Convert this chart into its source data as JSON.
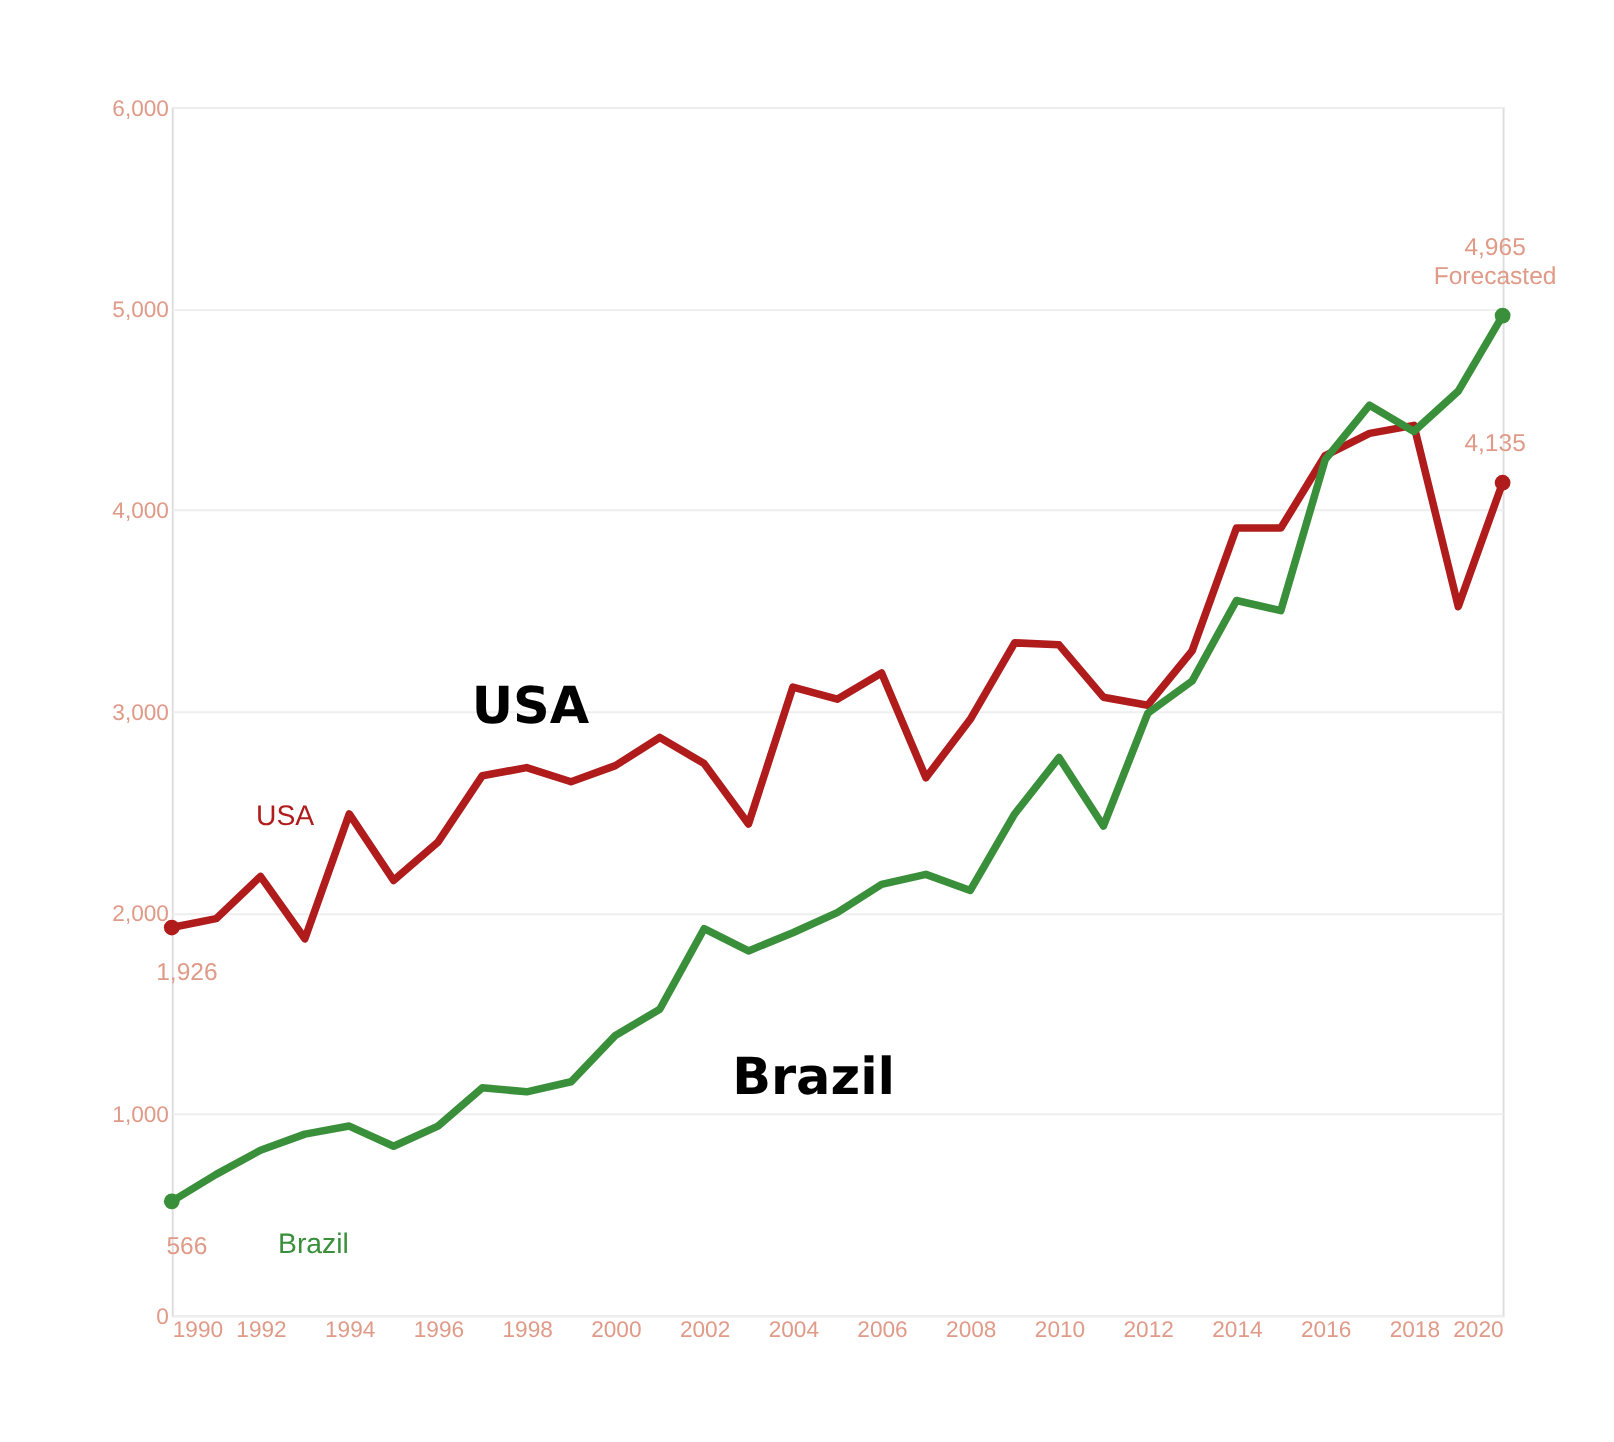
{
  "chart_data": {
    "type": "line",
    "x": [
      1990,
      1991,
      1992,
      1993,
      1994,
      1995,
      1996,
      1997,
      1998,
      1999,
      2000,
      2001,
      2002,
      2003,
      2004,
      2005,
      2006,
      2007,
      2008,
      2009,
      2010,
      2011,
      2012,
      2013,
      2014,
      2015,
      2016,
      2017,
      2018,
      2019,
      2020
    ],
    "series": [
      {
        "name": "USA",
        "color": "#b01c1c",
        "values": [
          1926,
          1970,
          2180,
          1870,
          2490,
          2160,
          2350,
          2680,
          2720,
          2650,
          2730,
          2870,
          2740,
          2440,
          3120,
          3060,
          3190,
          2670,
          2960,
          3340,
          3330,
          3070,
          3030,
          3300,
          3910,
          3910,
          4270,
          4380,
          4420,
          3520,
          4135
        ],
        "value_labels": [
          "1,926",
          null,
          null,
          null,
          null,
          null,
          null,
          null,
          null,
          null,
          null,
          null,
          null,
          null,
          null,
          null,
          null,
          null,
          null,
          null,
          null,
          null,
          null,
          null,
          null,
          null,
          null,
          null,
          null,
          null,
          "4,135"
        ]
      },
      {
        "name": "Brazil",
        "color": "#3a8f3a",
        "values": [
          566,
          700,
          820,
          900,
          940,
          840,
          940,
          1130,
          1110,
          1160,
          1390,
          1520,
          1920,
          1810,
          1900,
          2000,
          2140,
          2190,
          2110,
          2490,
          2770,
          2430,
          2990,
          3150,
          3550,
          3500,
          4250,
          4520,
          4390,
          4590,
          4965
        ],
        "value_labels": [
          "566",
          null,
          null,
          null,
          null,
          null,
          null,
          null,
          null,
          null,
          null,
          null,
          null,
          null,
          null,
          null,
          null,
          null,
          null,
          null,
          null,
          null,
          null,
          null,
          null,
          null,
          null,
          null,
          null,
          null,
          "4,965\nForecasted"
        ]
      }
    ],
    "annotations": [
      "USA",
      "Brazil"
    ],
    "xlim": [
      1990,
      2020
    ],
    "xticks": [
      1990,
      1992,
      1994,
      1996,
      1998,
      2000,
      2002,
      2004,
      2006,
      2008,
      2010,
      2012,
      2014,
      2016,
      2018,
      2020
    ],
    "ylim": [
      0,
      6000
    ],
    "yticks": [
      {
        "value": 0,
        "label": "0"
      },
      {
        "value": 1000,
        "label": "1,000"
      },
      {
        "value": 2000,
        "label": "2,000"
      },
      {
        "value": 3000,
        "label": "3,000"
      },
      {
        "value": 4000,
        "label": "4,000"
      },
      {
        "value": 5000,
        "label": "5,000"
      },
      {
        "value": 6000,
        "label": "6,000"
      }
    ],
    "grid": "y",
    "legend": false,
    "marker": "none",
    "line_style": "solid"
  }
}
